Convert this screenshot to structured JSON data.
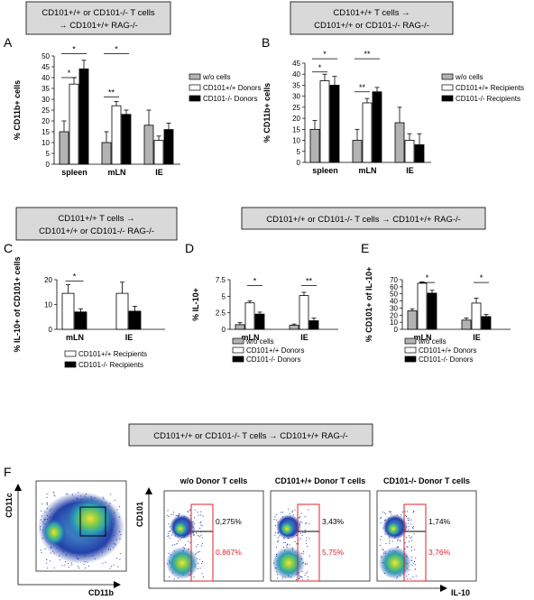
{
  "headers": {
    "a": [
      "CD101+/+ or CD101-/- T cells",
      "→ CD101+/+ RAG-/-"
    ],
    "b": [
      "CD101+/+  T cells →",
      "CD101+/+ or CD101-/- RAG-/-"
    ],
    "c": [
      "CD101+/+  T cells →",
      "CD101+/+ or CD101-/- RAG-/-"
    ],
    "de": [
      "CD101+/+ or CD101-/- T cells → CD101+/+ RAG-/-"
    ],
    "f": [
      "CD101+/+ or CD101-/- T cells → CD101+/+ RAG-/-"
    ]
  },
  "colors": {
    "wo": "#b3b3b3",
    "wt": "#ffffff",
    "ko": "#000000",
    "gate_black": "#000000",
    "gate_red": "#e0202a"
  },
  "chart_data": [
    {
      "panel": "A",
      "type": "bar",
      "categories": [
        "spleen",
        "mLN",
        "IE"
      ],
      "ylabel": "% CD11b+ cells",
      "ylim": [
        0,
        50
      ],
      "yticks": [
        0,
        5,
        10,
        15,
        20,
        25,
        30,
        35,
        40,
        45,
        50
      ],
      "series": [
        {
          "name": "w/o cells",
          "color": "#b3b3b3",
          "values": [
            15,
            10,
            18
          ],
          "errors": [
            5,
            5,
            7
          ]
        },
        {
          "name": "CD101+/+ Donors",
          "color": "#ffffff",
          "values": [
            37,
            27,
            11
          ],
          "errors": [
            3,
            2,
            2
          ]
        },
        {
          "name": "CD101-/- Donors",
          "color": "#000000",
          "values": [
            44,
            23,
            16
          ],
          "errors": [
            4,
            2,
            3
          ]
        }
      ],
      "significance": [
        {
          "label": "*",
          "category": 0,
          "from": 0,
          "to": 1,
          "y": 40
        },
        {
          "label": "*",
          "category": 0,
          "from": 0,
          "to": 2,
          "y": 51
        },
        {
          "label": "**",
          "category": 1,
          "from": 0,
          "to": 1,
          "y": 31
        },
        {
          "label": "*",
          "category": 1,
          "from": 0,
          "to": 2,
          "y": 51
        }
      ]
    },
    {
      "panel": "B",
      "type": "bar",
      "categories": [
        "spleen",
        "mLN",
        "IE"
      ],
      "ylabel": "% CD11b+ cells",
      "ylim": [
        0,
        45
      ],
      "yticks": [
        0,
        5,
        10,
        15,
        20,
        25,
        30,
        35,
        40,
        45
      ],
      "series": [
        {
          "name": "w/o cells",
          "color": "#b3b3b3",
          "values": [
            15,
            10,
            18
          ],
          "errors": [
            4,
            5,
            7
          ]
        },
        {
          "name": "CD101+/+ Recipients",
          "color": "#ffffff",
          "values": [
            37,
            27,
            10
          ],
          "errors": [
            3,
            2,
            3
          ]
        },
        {
          "name": "CD101-/- Recipients",
          "color": "#000000",
          "values": [
            35,
            32,
            8
          ],
          "errors": [
            4,
            2,
            5
          ]
        }
      ],
      "significance": [
        {
          "label": "*",
          "category": 0,
          "from": 0,
          "to": 1,
          "y": 41
        },
        {
          "label": "*",
          "category": 0,
          "from": 0,
          "to": 2,
          "y": 47
        },
        {
          "label": "**",
          "category": 1,
          "from": 0,
          "to": 1,
          "y": 32
        },
        {
          "label": "**",
          "category": 1,
          "from": 0,
          "to": 2,
          "y": 47
        }
      ]
    },
    {
      "panel": "C",
      "type": "bar",
      "categories": [
        "mLN",
        "IE"
      ],
      "ylabel": "% IL-10+ of CD101+ cells",
      "ylim": [
        0,
        20
      ],
      "yticks": [
        0,
        10,
        20
      ],
      "series": [
        {
          "name": "CD101+/+ Recipients",
          "color": "#ffffff",
          "values": [
            14.5,
            14.5
          ],
          "errors": [
            3.5,
            4.5
          ]
        },
        {
          "name": "CD101-/- Recipients",
          "color": "#000000",
          "values": [
            7,
            7.3
          ],
          "errors": [
            1.3,
            2
          ]
        }
      ],
      "significance": [
        {
          "label": "*",
          "category": 0,
          "from": 0,
          "to": 1,
          "y": 19.5
        }
      ]
    },
    {
      "panel": "D",
      "type": "bar",
      "categories": [
        "mLN",
        "IE"
      ],
      "ylabel": "% IL-10+",
      "ylim": [
        0,
        7.5
      ],
      "yticks": [
        0,
        2.5,
        5,
        7.5
      ],
      "series": [
        {
          "name": "w/o cells",
          "color": "#b3b3b3",
          "values": [
            0.7,
            0.6
          ],
          "errors": [
            0.3,
            0.2
          ]
        },
        {
          "name": "CD101+/+ Donors",
          "color": "#ffffff",
          "values": [
            4.0,
            5.1
          ],
          "errors": [
            0.3,
            0.5
          ]
        },
        {
          "name": "CD101-/- Donors",
          "color": "#000000",
          "values": [
            2.3,
            1.3
          ],
          "errors": [
            0.3,
            0.4
          ]
        }
      ],
      "significance": [
        {
          "label": "*",
          "category": 0,
          "from": 1,
          "to": 2,
          "y": 6.6
        },
        {
          "label": "**",
          "category": 1,
          "from": 1,
          "to": 2,
          "y": 6.6
        }
      ]
    },
    {
      "panel": "E",
      "type": "bar",
      "categories": [
        "mLN",
        "IE"
      ],
      "ylabel": "% CD101+ of IL-10+",
      "ylim": [
        0,
        70
      ],
      "yticks": [
        0,
        10,
        20,
        30,
        40,
        50,
        60,
        70
      ],
      "series": [
        {
          "name": "w/o cells",
          "color": "#b3b3b3",
          "values": [
            26,
            13
          ],
          "errors": [
            3,
            3
          ]
        },
        {
          "name": "CD101+/+ Donors",
          "color": "#ffffff",
          "values": [
            65,
            37
          ],
          "errors": [
            2,
            7
          ]
        },
        {
          "name": "CD101-/- Donors",
          "color": "#000000",
          "values": [
            51,
            18
          ],
          "errors": [
            4,
            3
          ]
        }
      ],
      "significance": [
        {
          "label": "*",
          "category": 0,
          "from": 1,
          "to": 2,
          "y": 66
        },
        {
          "label": "*",
          "category": 1,
          "from": 1,
          "to": 2,
          "y": 66
        }
      ]
    }
  ],
  "flow": {
    "overview": {
      "xlabel": "CD11b",
      "ylabel": "CD11c"
    },
    "xlabel": "IL-10",
    "ylabel": "CD101",
    "plots": [
      {
        "title": "w/o Donor T cells",
        "upper": "0,275%",
        "lower": "0,867%"
      },
      {
        "title": "CD101+/+ Donor T cells",
        "upper": "3,43%",
        "lower": "5,75%"
      },
      {
        "title": "CD101-/- Donor T cells",
        "upper": "1,74%",
        "lower": "3,76%"
      }
    ]
  }
}
